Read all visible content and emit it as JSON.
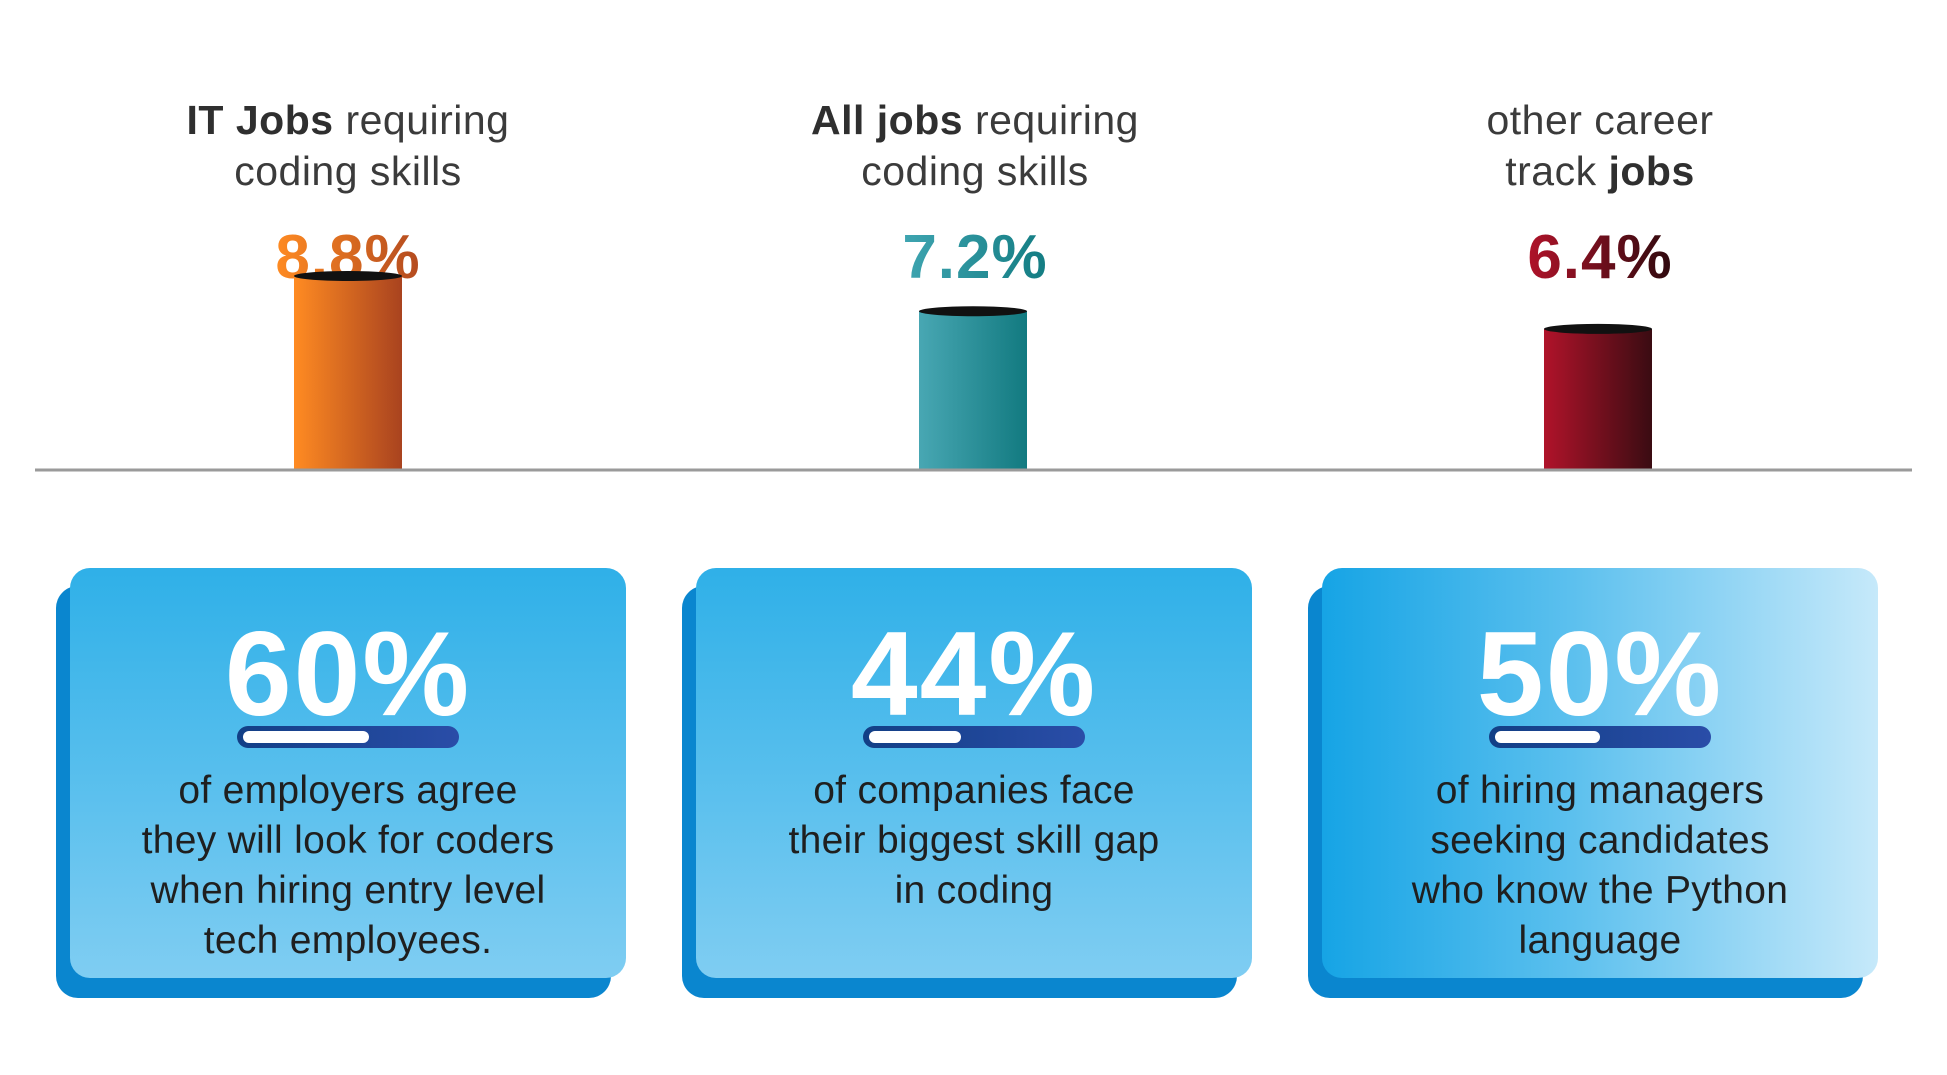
{
  "chart_data": {
    "type": "bar",
    "categories": [
      {
        "bold": "IT Jobs",
        "rest1": " requiring",
        "line2": "coding skills",
        "pre": ""
      },
      {
        "bold": "All jobs",
        "rest1": " requiring",
        "line2": "coding skills",
        "pre": ""
      },
      {
        "bold": "jobs",
        "rest1": "",
        "line2": "track ",
        "pre": "other career"
      }
    ],
    "values": [
      8.8,
      7.2,
      6.4
    ],
    "value_labels": [
      "8.8%",
      "7.2%",
      "6.4%"
    ],
    "colors": [
      {
        "from": "#ff8b22",
        "to": "#a9431f"
      },
      {
        "from": "#48a7b3",
        "to": "#127a80"
      },
      {
        "from": "#b0132a",
        "to": "#3a0c12"
      }
    ],
    "title": "",
    "xlabel": "",
    "ylabel": "",
    "ylim": [
      0,
      10
    ],
    "grid": false,
    "legend": "none"
  },
  "stats": [
    {
      "value": "60%",
      "fraction": 0.6,
      "text": [
        "of employers agree",
        "they will look for coders",
        "when hiring entry level",
        "tech employees."
      ]
    },
    {
      "value": "44%",
      "fraction": 0.44,
      "text": [
        "of companies face",
        "their biggest skill gap",
        "in coding"
      ]
    },
    {
      "value": "50%",
      "fraction": 0.5,
      "text": [
        "of hiring managers",
        "seeking candidates",
        "who know the Python",
        "language"
      ]
    }
  ]
}
